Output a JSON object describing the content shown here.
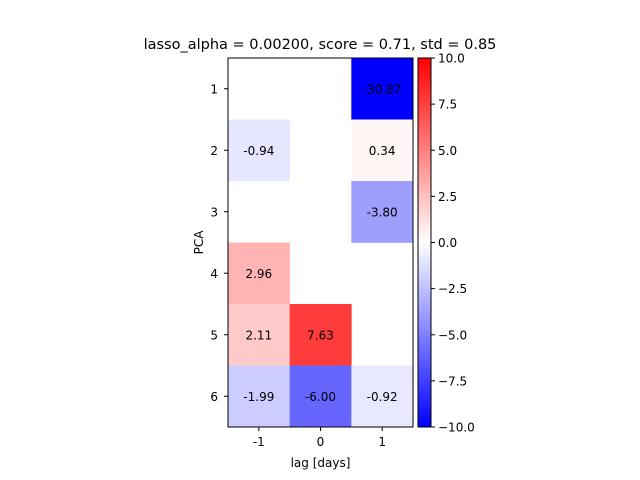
{
  "chart_data": {
    "type": "heatmap",
    "title": "lasso_alpha = 0.00200, score = 0.71, std = 0.85",
    "xlabel": "lag [days]",
    "ylabel": "PCA",
    "x_categories": [
      "-1",
      "0",
      "1"
    ],
    "y_categories": [
      "1",
      "2",
      "3",
      "4",
      "5",
      "6"
    ],
    "cells": [
      {
        "row": 0,
        "col": 2,
        "value": -30.87,
        "label": "-30.87"
      },
      {
        "row": 1,
        "col": 0,
        "value": -0.94,
        "label": "-0.94"
      },
      {
        "row": 1,
        "col": 2,
        "value": 0.34,
        "label": "0.34"
      },
      {
        "row": 2,
        "col": 2,
        "value": -3.8,
        "label": "-3.80"
      },
      {
        "row": 3,
        "col": 0,
        "value": 2.96,
        "label": "2.96"
      },
      {
        "row": 4,
        "col": 0,
        "value": 2.11,
        "label": "2.11"
      },
      {
        "row": 4,
        "col": 1,
        "value": 7.63,
        "label": "7.63"
      },
      {
        "row": 5,
        "col": 0,
        "value": -1.99,
        "label": "-1.99"
      },
      {
        "row": 5,
        "col": 1,
        "value": -6.0,
        "label": "-6.00"
      },
      {
        "row": 5,
        "col": 2,
        "value": -0.92,
        "label": "-0.92"
      }
    ],
    "colormap": {
      "name": "bwr",
      "min_color": "#0000ff",
      "mid_color": "#ffffff",
      "max_color": "#ff0000"
    },
    "vmin": -10.0,
    "vmax": 10.0,
    "colorbar_ticks": [
      "10.0",
      "7.5",
      "5.0",
      "2.5",
      "0.0",
      "−2.5",
      "−5.0",
      "−7.5",
      "−10.0"
    ],
    "colorbar_tick_values": [
      10.0,
      7.5,
      5.0,
      2.5,
      0.0,
      -2.5,
      -5.0,
      -7.5,
      -10.0
    ]
  }
}
